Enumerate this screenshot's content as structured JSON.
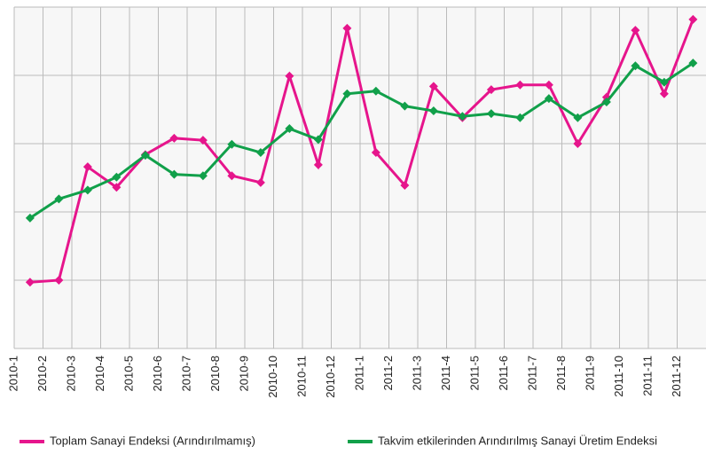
{
  "chart_data": {
    "type": "line",
    "categories": [
      "2010-1",
      "2010-2",
      "2010-3",
      "2010-4",
      "2010-5",
      "2010-6",
      "2010-7",
      "2010-8",
      "2010-9",
      "2010-10",
      "2010-11",
      "2010-12",
      "2011-1",
      "2011-2",
      "2011-3",
      "2011-4",
      "2011-5",
      "2011-6",
      "2011-7",
      "2011-8",
      "2011-9",
      "2011-10",
      "2011-11",
      "2011-12"
    ],
    "series": [
      {
        "name": "Toplam Sanayi Endeksi (Arındırılmamış)",
        "color": "#e6158c",
        "values": [
          0.97,
          1.0,
          2.66,
          2.36,
          2.84,
          3.08,
          3.05,
          2.53,
          2.43,
          3.99,
          2.69,
          4.69,
          2.87,
          2.39,
          3.84,
          3.38,
          3.79,
          3.86,
          3.86,
          3.0,
          3.68,
          4.66,
          3.73,
          4.82
        ]
      },
      {
        "name": "Takvim etkilerinden Arındırılmış Sanayi Üretim  Endeksi",
        "color": "#11a04a",
        "values": [
          1.91,
          2.19,
          2.32,
          2.51,
          2.83,
          2.55,
          2.53,
          2.99,
          2.87,
          3.22,
          3.06,
          3.73,
          3.77,
          3.55,
          3.48,
          3.4,
          3.44,
          3.38,
          3.66,
          3.38,
          3.61,
          4.14,
          3.9,
          4.18
        ]
      }
    ],
    "ylim": [
      0,
      5
    ],
    "yticks": [
      0,
      1,
      2,
      3,
      4,
      5
    ],
    "grid": true
  }
}
